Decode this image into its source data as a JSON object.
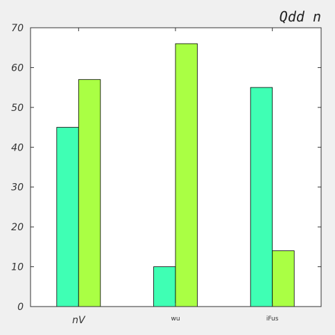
{
  "chart_data": {
    "type": "bar",
    "title": "Qdd  n",
    "xlabel": "",
    "ylabel": "",
    "categories": [
      "nV",
      "wu",
      "iFus"
    ],
    "series": [
      {
        "values": [
          45,
          10,
          55
        ],
        "color": "#3fffb4"
      },
      {
        "values": [
          57,
          66,
          14
        ],
        "color": "#aaff44"
      }
    ],
    "ylim": [
      0,
      70
    ],
    "yticks": [
      0,
      10,
      20,
      30,
      40,
      50,
      60,
      70
    ],
    "grid": false,
    "legend": "none"
  },
  "colors": {
    "background": "#f0f0f0",
    "plot_area": "#ffffff",
    "axis": "#333333",
    "bar_edge": "#000000"
  }
}
